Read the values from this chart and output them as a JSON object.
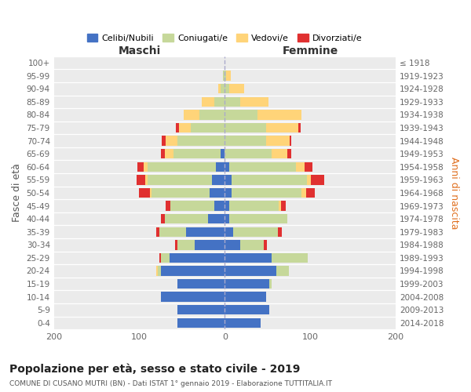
{
  "age_groups": [
    "0-4",
    "5-9",
    "10-14",
    "15-19",
    "20-24",
    "25-29",
    "30-34",
    "35-39",
    "40-44",
    "45-49",
    "50-54",
    "55-59",
    "60-64",
    "65-69",
    "70-74",
    "75-79",
    "80-84",
    "85-89",
    "90-94",
    "95-99",
    "100+"
  ],
  "birth_years": [
    "2014-2018",
    "2009-2013",
    "2004-2008",
    "1999-2003",
    "1994-1998",
    "1989-1993",
    "1984-1988",
    "1979-1983",
    "1974-1978",
    "1969-1973",
    "1964-1968",
    "1959-1963",
    "1954-1958",
    "1949-1953",
    "1944-1948",
    "1939-1943",
    "1934-1938",
    "1929-1933",
    "1924-1928",
    "1919-1923",
    "≤ 1918"
  ],
  "maschi": {
    "celibi": [
      55,
      55,
      75,
      55,
      75,
      65,
      35,
      45,
      20,
      12,
      18,
      15,
      10,
      5,
      0,
      0,
      0,
      0,
      0,
      0,
      0
    ],
    "coniugati": [
      0,
      0,
      0,
      0,
      3,
      10,
      20,
      32,
      50,
      52,
      68,
      75,
      80,
      55,
      55,
      40,
      30,
      12,
      5,
      2,
      0
    ],
    "vedovi": [
      0,
      0,
      0,
      0,
      2,
      0,
      0,
      0,
      0,
      0,
      2,
      3,
      5,
      10,
      14,
      14,
      18,
      15,
      3,
      0,
      0
    ],
    "divorziati": [
      0,
      0,
      0,
      0,
      0,
      2,
      3,
      3,
      5,
      5,
      12,
      10,
      7,
      5,
      5,
      3,
      0,
      0,
      0,
      0,
      0
    ]
  },
  "femmine": {
    "nubili": [
      42,
      52,
      48,
      52,
      60,
      55,
      18,
      10,
      5,
      5,
      8,
      8,
      5,
      0,
      0,
      0,
      0,
      0,
      0,
      0,
      0
    ],
    "coniugate": [
      0,
      0,
      0,
      3,
      15,
      42,
      28,
      52,
      68,
      58,
      82,
      88,
      78,
      55,
      48,
      48,
      38,
      18,
      5,
      2,
      0
    ],
    "vedove": [
      0,
      0,
      0,
      0,
      0,
      0,
      0,
      0,
      0,
      3,
      5,
      5,
      10,
      18,
      28,
      38,
      52,
      33,
      18,
      5,
      0
    ],
    "divorziate": [
      0,
      0,
      0,
      0,
      0,
      0,
      3,
      5,
      0,
      5,
      10,
      15,
      10,
      5,
      2,
      3,
      0,
      0,
      0,
      0,
      0
    ]
  },
  "colors": {
    "celibi": "#4472C4",
    "coniugati": "#C6D89A",
    "vedovi": "#FFD479",
    "divorziati": "#E03030"
  },
  "title": "Popolazione per età, sesso e stato civile - 2019",
  "subtitle": "COMUNE DI CUSANO MUTRI (BN) - Dati ISTAT 1° gennaio 2019 - Elaborazione TUTTITALIA.IT",
  "maschi_label": "Maschi",
  "femmine_label": "Femmine",
  "ylabel_left": "Fasce di età",
  "ylabel_right": "Anni di nascita",
  "legend_labels": [
    "Celibi/Nubili",
    "Coniugati/e",
    "Vedovi/e",
    "Divorziati/e"
  ],
  "xlim": 200
}
